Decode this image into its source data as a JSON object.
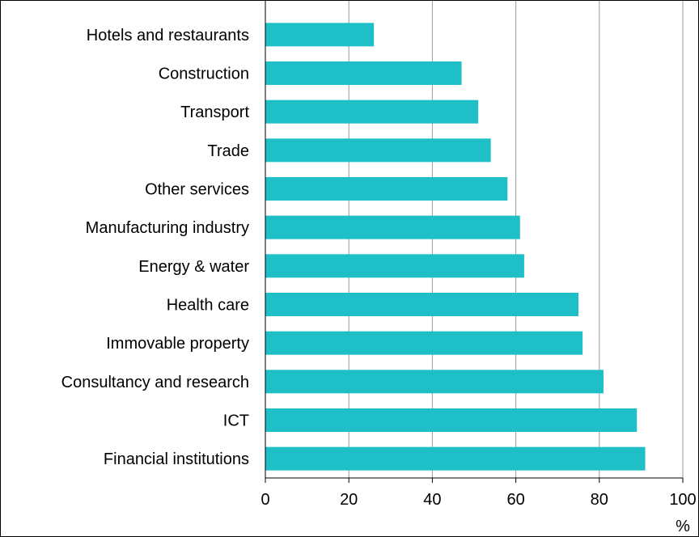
{
  "chart_data": {
    "type": "bar",
    "orientation": "horizontal",
    "categories": [
      "Hotels and restaurants",
      "Construction",
      "Transport",
      "Trade",
      "Other services",
      "Manufacturing industry",
      "Energy & water",
      "Health care",
      "Immovable property",
      "Consultancy and research",
      "ICT",
      "Financial institutions"
    ],
    "values": [
      26,
      47,
      51,
      54,
      58,
      61,
      62,
      75,
      76,
      81,
      89,
      91
    ],
    "xlim": [
      0,
      100
    ],
    "xticks": [
      0,
      20,
      40,
      60,
      80,
      100
    ],
    "xticklabels": [
      "0",
      "20",
      "40",
      "60",
      "80",
      "100"
    ],
    "xlabel": "%",
    "grid": "vertical",
    "bar_color": "#1FBFC8",
    "grid_color": "#9b9b9b"
  }
}
